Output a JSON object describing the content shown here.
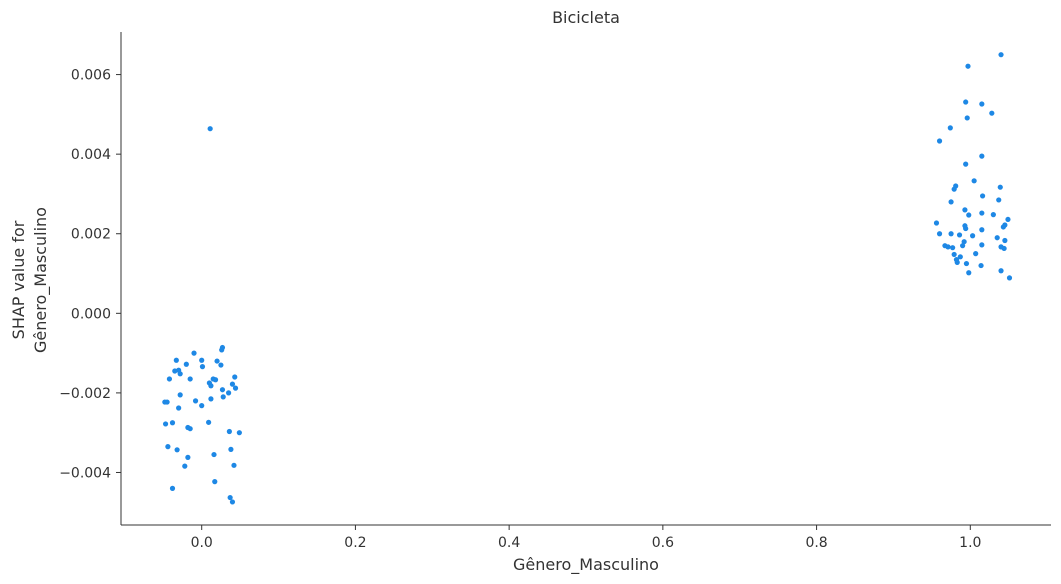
{
  "chart_data": {
    "type": "scatter",
    "title": "Bicicleta",
    "xlabel": "Gênero_Masculino",
    "ylabel_lines": [
      "SHAP value for",
      "Gênero_Masculino"
    ],
    "xlim": [
      -0.105,
      1.105
    ],
    "ylim": [
      -0.00532,
      0.00707
    ],
    "x_ticks": [
      0.0,
      0.2,
      0.4,
      0.6,
      0.8,
      1.0
    ],
    "x_tick_labels": [
      "0.0",
      "0.2",
      "0.4",
      "0.6",
      "0.8",
      "1.0"
    ],
    "y_ticks": [
      -0.004,
      -0.002,
      0.0,
      0.002,
      0.004,
      0.006
    ],
    "y_tick_labels": [
      "−0.004",
      "−0.002",
      "0.000",
      "0.002",
      "0.004",
      "0.006"
    ],
    "point_color": "#1e88e5",
    "axis_color": "#333333",
    "series": [
      {
        "name": "Gênero_Masculino",
        "points": [
          [
            0.011,
            0.00464
          ],
          [
            0.027,
            -0.00086
          ],
          [
            0.026,
            -0.00092
          ],
          [
            -0.01,
            -0.001
          ],
          [
            -0.033,
            -0.00118
          ],
          [
            0.0,
            -0.00118
          ],
          [
            0.02,
            -0.0012
          ],
          [
            -0.02,
            -0.00128
          ],
          [
            0.025,
            -0.0013
          ],
          [
            0.001,
            -0.00134
          ],
          [
            -0.03,
            -0.00143
          ],
          [
            -0.035,
            -0.00145
          ],
          [
            -0.028,
            -0.00152
          ],
          [
            0.043,
            -0.0016
          ],
          [
            0.015,
            -0.00165
          ],
          [
            0.018,
            -0.00167
          ],
          [
            -0.042,
            -0.00165
          ],
          [
            -0.015,
            -0.00165
          ],
          [
            0.01,
            -0.00175
          ],
          [
            0.04,
            -0.00178
          ],
          [
            0.012,
            -0.00182
          ],
          [
            0.044,
            -0.00188
          ],
          [
            0.027,
            -0.00192
          ],
          [
            0.035,
            -0.002
          ],
          [
            -0.028,
            -0.00205
          ],
          [
            0.028,
            -0.0021
          ],
          [
            0.012,
            -0.00215
          ],
          [
            -0.008,
            -0.0022
          ],
          [
            -0.048,
            -0.00223
          ],
          [
            -0.045,
            -0.00223
          ],
          [
            0.0,
            -0.00232
          ],
          [
            -0.03,
            -0.00238
          ],
          [
            0.009,
            -0.00274
          ],
          [
            -0.038,
            -0.00275
          ],
          [
            -0.047,
            -0.00278
          ],
          [
            -0.018,
            -0.00287
          ],
          [
            -0.015,
            -0.0029
          ],
          [
            0.036,
            -0.00297
          ],
          [
            0.049,
            -0.003
          ],
          [
            -0.044,
            -0.00335
          ],
          [
            -0.032,
            -0.00343
          ],
          [
            0.038,
            -0.00342
          ],
          [
            0.016,
            -0.00355
          ],
          [
            -0.018,
            -0.00362
          ],
          [
            -0.022,
            -0.00384
          ],
          [
            0.042,
            -0.00382
          ],
          [
            0.017,
            -0.00423
          ],
          [
            -0.038,
            -0.0044
          ],
          [
            0.037,
            -0.00463
          ],
          [
            0.04,
            -0.00474
          ],
          [
            1.04,
            0.0065
          ],
          [
            0.997,
            0.00621
          ],
          [
            0.994,
            0.00531
          ],
          [
            1.015,
            0.00526
          ],
          [
            1.028,
            0.00503
          ],
          [
            0.996,
            0.00491
          ],
          [
            0.974,
            0.00466
          ],
          [
            0.96,
            0.00433
          ],
          [
            1.015,
            0.00395
          ],
          [
            0.994,
            0.00375
          ],
          [
            1.005,
            0.00333
          ],
          [
            0.981,
            0.0032
          ],
          [
            1.039,
            0.00317
          ],
          [
            0.979,
            0.00312
          ],
          [
            1.016,
            0.00295
          ],
          [
            1.037,
            0.00285
          ],
          [
            0.975,
            0.0028
          ],
          [
            0.993,
            0.0026
          ],
          [
            1.015,
            0.00252
          ],
          [
            0.998,
            0.00247
          ],
          [
            1.03,
            0.00248
          ],
          [
            1.049,
            0.00236
          ],
          [
            0.956,
            0.00227
          ],
          [
            1.045,
            0.00222
          ],
          [
            0.993,
            0.0022
          ],
          [
            1.043,
            0.00217
          ],
          [
            0.994,
            0.00213
          ],
          [
            1.015,
            0.0021
          ],
          [
            0.96,
            0.002
          ],
          [
            0.975,
            0.002
          ],
          [
            0.986,
            0.00197
          ],
          [
            1.003,
            0.00195
          ],
          [
            1.035,
            0.0019
          ],
          [
            0.992,
            0.0018
          ],
          [
            1.045,
            0.00183
          ],
          [
            0.967,
            0.0017
          ],
          [
            0.99,
            0.0017
          ],
          [
            1.015,
            0.00172
          ],
          [
            0.971,
            0.00167
          ],
          [
            0.977,
            0.00165
          ],
          [
            1.04,
            0.00167
          ],
          [
            1.044,
            0.00163
          ],
          [
            1.007,
            0.0015
          ],
          [
            0.979,
            0.00148
          ],
          [
            0.987,
            0.00142
          ],
          [
            0.982,
            0.00135
          ],
          [
            0.983,
            0.00128
          ],
          [
            0.995,
            0.00125
          ],
          [
            1.014,
            0.0012
          ],
          [
            1.04,
            0.00107
          ],
          [
            0.998,
            0.00102
          ],
          [
            1.051,
            0.00089
          ]
        ]
      }
    ]
  }
}
